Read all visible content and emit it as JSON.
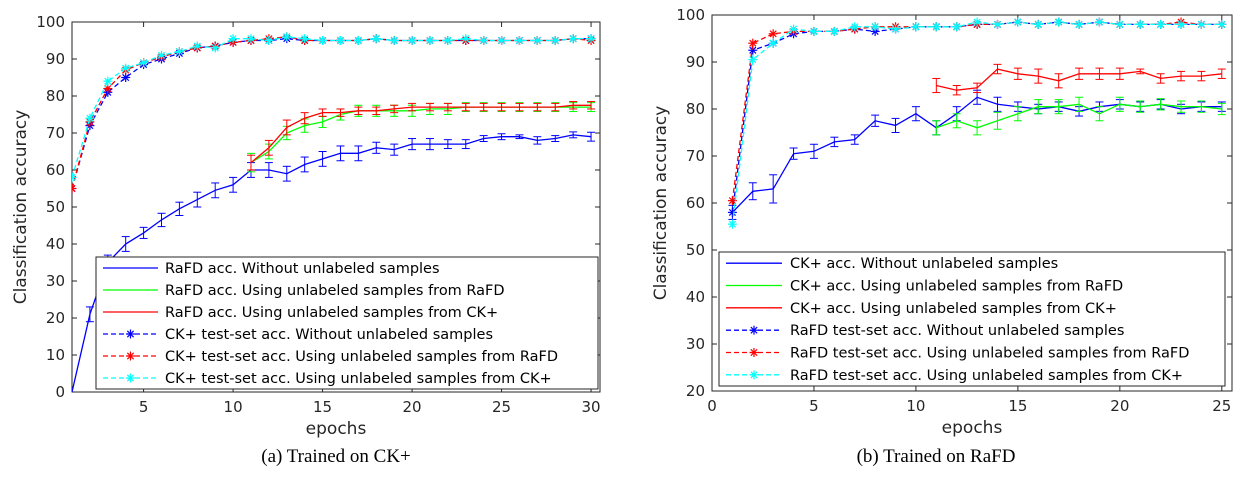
{
  "figure": {
    "captions": [
      "(a) Trained on CK+",
      "(b) Trained on RaFD"
    ]
  },
  "chart_data": [
    {
      "type": "line",
      "title": "",
      "xlabel": "epochs",
      "ylabel": "Classification accuracy",
      "xlim": [
        1,
        30.5
      ],
      "ylim": [
        0,
        100
      ],
      "xticks": [
        5,
        10,
        15,
        20,
        25,
        30
      ],
      "yticks": [
        0,
        10,
        20,
        30,
        40,
        50,
        60,
        70,
        80,
        90,
        100
      ],
      "grid": false,
      "legend": "bottom-right",
      "series": [
        {
          "name": "RaFD acc. Without unlabeled samples",
          "color": "#0000ff",
          "dash": false,
          "marker": "none",
          "x": [
            1,
            2,
            3,
            4,
            5,
            6,
            7,
            8,
            9,
            10,
            11,
            12,
            13,
            14,
            15,
            16,
            17,
            18,
            19,
            20,
            21,
            22,
            23,
            24,
            25,
            26,
            27,
            28,
            29,
            30
          ],
          "y": [
            0,
            21,
            35,
            40,
            43,
            46.5,
            49.5,
            52,
            54.5,
            56,
            60,
            60,
            59,
            61.5,
            63,
            64.5,
            64.5,
            66,
            65.5,
            67,
            67,
            67,
            67,
            68.5,
            69,
            69,
            68,
            68.5,
            69.5,
            69
          ],
          "err": [
            0,
            2,
            2,
            2,
            1.5,
            1.8,
            1.8,
            2,
            2,
            2,
            2,
            2,
            2,
            2,
            2,
            2,
            2,
            1.5,
            1.5,
            1.5,
            1.5,
            1.2,
            1.2,
            0.8,
            0.8,
            0.5,
            1,
            0.8,
            0.8,
            1.2
          ]
        },
        {
          "name": "RaFD acc. Using unlabeled samples from RaFD",
          "color": "#00ff00",
          "dash": false,
          "marker": "none",
          "x": [
            11,
            12,
            13,
            14,
            15,
            16,
            17,
            18,
            19,
            20,
            21,
            22,
            23,
            24,
            25,
            26,
            27,
            28,
            29,
            30
          ],
          "y": [
            62,
            65,
            70,
            72,
            73,
            75,
            76,
            76,
            76,
            76,
            76.5,
            76.5,
            77,
            77,
            77,
            77,
            77,
            77,
            77,
            77
          ],
          "err": [
            2.5,
            2,
            1.8,
            1.8,
            1.5,
            1.5,
            1.5,
            1.5,
            1.5,
            1.5,
            1.5,
            1.5,
            1.2,
            1.2,
            1.2,
            1.2,
            1.2,
            1.2,
            1.2,
            1.2
          ]
        },
        {
          "name": "RaFD acc. Using unlabeled samples from CK+",
          "color": "#ff0000",
          "dash": false,
          "marker": "none",
          "x": [
            11,
            12,
            13,
            14,
            15,
            16,
            17,
            18,
            19,
            20,
            21,
            22,
            23,
            24,
            25,
            26,
            27,
            28,
            29,
            30
          ],
          "y": [
            62,
            66,
            71.5,
            74,
            75.5,
            75.5,
            76,
            76,
            76.5,
            77,
            77,
            77,
            77,
            77,
            77,
            77,
            77,
            77,
            77.5,
            77.5
          ],
          "err": [
            2,
            2,
            2,
            1.5,
            1,
            1,
            1,
            1,
            1,
            1,
            1,
            1,
            1,
            1,
            1,
            1,
            1,
            1,
            1,
            1
          ]
        },
        {
          "name": "CK+ test-set acc. Without unlabeled samples",
          "color": "#0000ff",
          "dash": true,
          "marker": "asterisk",
          "x": [
            1,
            2,
            3,
            4,
            5,
            6,
            7,
            8,
            9,
            10,
            11,
            12,
            13,
            14,
            15,
            16,
            17,
            18,
            19,
            20,
            21,
            22,
            23,
            24,
            25,
            26,
            27,
            28,
            29,
            30
          ],
          "y": [
            55,
            72,
            81,
            85,
            88.5,
            90,
            91.5,
            93,
            93.5,
            94.5,
            95,
            95,
            95.5,
            95,
            95,
            95,
            95,
            95.5,
            95,
            95,
            95,
            95,
            95,
            95,
            95,
            95,
            95,
            95,
            95.5,
            95.5
          ]
        },
        {
          "name": "CK+ test-set acc. Using unlabeled samples from RaFD",
          "color": "#ff0000",
          "dash": true,
          "marker": "asterisk",
          "x": [
            1,
            2,
            3,
            4,
            5,
            6,
            7,
            8,
            9,
            10,
            11,
            12,
            13,
            14,
            15,
            16,
            17,
            18,
            19,
            20,
            21,
            22,
            23,
            24,
            25,
            26,
            27,
            28,
            29,
            30
          ],
          "y": [
            55,
            73,
            82,
            87,
            89,
            90.5,
            92,
            93,
            93.5,
            94.5,
            95,
            95.5,
            96,
            95,
            95,
            95,
            95,
            95.5,
            95,
            95,
            95,
            95,
            95,
            95,
            95,
            95,
            95,
            95,
            95.5,
            95
          ]
        },
        {
          "name": "CK+ test-set acc. Using unlabeled samples from CK+",
          "color": "#00ffff",
          "dash": true,
          "marker": "asterisk",
          "x": [
            1,
            2,
            3,
            4,
            5,
            6,
            7,
            8,
            9,
            10,
            11,
            12,
            13,
            14,
            15,
            16,
            17,
            18,
            19,
            20,
            21,
            22,
            23,
            24,
            25,
            26,
            27,
            28,
            29,
            30
          ],
          "y": [
            58,
            74,
            84,
            87.5,
            89,
            91,
            92,
            93.5,
            93,
            95.5,
            95.5,
            95,
            96,
            95.5,
            95,
            95,
            95,
            95.5,
            95,
            95,
            95,
            95,
            95.5,
            95,
            95,
            95,
            95,
            95,
            95.5,
            95.5
          ]
        }
      ]
    },
    {
      "type": "line",
      "title": "",
      "xlabel": "epochs",
      "ylabel": "Classification accuracy",
      "xlim": [
        0,
        25.5
      ],
      "ylim": [
        20,
        100
      ],
      "xticks": [
        0,
        5,
        10,
        15,
        20,
        25
      ],
      "yticks": [
        20,
        30,
        40,
        50,
        60,
        70,
        80,
        90,
        100
      ],
      "grid": false,
      "legend": "bottom-left",
      "series": [
        {
          "name": "CK+ acc. Without unlabeled samples",
          "color": "#0000ff",
          "dash": false,
          "marker": "none",
          "x": [
            1,
            2,
            3,
            4,
            5,
            6,
            7,
            8,
            9,
            10,
            11,
            12,
            13,
            14,
            15,
            16,
            17,
            18,
            19,
            20,
            21,
            22,
            23,
            24,
            25
          ],
          "y": [
            58,
            62.5,
            63,
            70.5,
            71,
            73,
            73.5,
            77.5,
            76.5,
            79,
            76,
            79,
            82.5,
            81,
            80.5,
            80,
            80.5,
            79.5,
            80.5,
            81,
            80.5,
            81,
            80,
            80.5,
            80.5
          ],
          "err": [
            1.5,
            1.8,
            3,
            1.2,
            1.5,
            1,
            1,
            1.2,
            1.5,
            1.5,
            1.5,
            1.5,
            1.5,
            1.5,
            1,
            1,
            1,
            1,
            1,
            1,
            1,
            1,
            1,
            1,
            1
          ]
        },
        {
          "name": "CK+ acc. Using unlabeled samples from RaFD",
          "color": "#00ff00",
          "dash": false,
          "marker": "none",
          "x": [
            11,
            12,
            13,
            14,
            15,
            16,
            17,
            18,
            19,
            20,
            21,
            22,
            23,
            24,
            25
          ],
          "y": [
            76,
            77.5,
            76,
            77.5,
            79,
            80.5,
            80.5,
            81,
            79,
            81,
            80.5,
            81,
            80.5,
            80.5,
            80
          ],
          "err": [
            1.5,
            1.5,
            1.5,
            1.8,
            1.5,
            1.5,
            1.5,
            1.5,
            1.5,
            1.5,
            1.2,
            1.2,
            1.2,
            1.2,
            1.2
          ]
        },
        {
          "name": "CK+ acc. Using unlabeled samples from CK+",
          "color": "#ff0000",
          "dash": false,
          "marker": "none",
          "x": [
            11,
            12,
            13,
            14,
            15,
            16,
            17,
            18,
            19,
            20,
            21,
            22,
            23,
            24,
            25
          ],
          "y": [
            85,
            84,
            84.5,
            88.5,
            87.5,
            87,
            86,
            87.5,
            87.5,
            87.5,
            88,
            86.5,
            87,
            87,
            87.5
          ],
          "err": [
            1.5,
            1,
            1,
            1,
            1.2,
            1.5,
            1.5,
            1.2,
            1.2,
            1.2,
            0.5,
            1,
            1,
            1,
            1
          ]
        },
        {
          "name": "RaFD test-set acc. Without unlabeled samples",
          "color": "#0000ff",
          "dash": true,
          "marker": "asterisk",
          "x": [
            1,
            2,
            3,
            4,
            5,
            6,
            7,
            8,
            9,
            10,
            11,
            12,
            13,
            14,
            15,
            16,
            17,
            18,
            19,
            20,
            21,
            22,
            23,
            24,
            25
          ],
          "y": [
            58,
            92.5,
            94,
            96,
            96.5,
            96.5,
            97,
            96.5,
            97,
            97.5,
            97.5,
            97.5,
            98,
            98,
            98.5,
            98,
            98.5,
            98,
            98.5,
            98,
            98,
            98,
            98,
            98,
            98
          ]
        },
        {
          "name": "RaFD test-set acc. Using unlabeled samples from RaFD",
          "color": "#ff0000",
          "dash": true,
          "marker": "asterisk",
          "x": [
            1,
            2,
            3,
            4,
            5,
            6,
            7,
            8,
            9,
            10,
            11,
            12,
            13,
            14,
            15,
            16,
            17,
            18,
            19,
            20,
            21,
            22,
            23,
            24,
            25
          ],
          "y": [
            60.5,
            94,
            96,
            96.5,
            96.5,
            96.5,
            97,
            97.5,
            97.5,
            97.5,
            97.5,
            97.5,
            98,
            98,
            98.5,
            98,
            98.5,
            98,
            98.5,
            98,
            98,
            98,
            98.5,
            98,
            98
          ]
        },
        {
          "name": "RaFD test-set acc. Using unlabeled samples from CK+",
          "color": "#00ffff",
          "dash": true,
          "marker": "asterisk",
          "x": [
            1,
            2,
            3,
            4,
            5,
            6,
            7,
            8,
            9,
            10,
            11,
            12,
            13,
            14,
            15,
            16,
            17,
            18,
            19,
            20,
            21,
            22,
            23,
            24,
            25
          ],
          "y": [
            55.5,
            90.5,
            94,
            97,
            96.5,
            96.5,
            97.5,
            97.5,
            97,
            97.5,
            97.5,
            97.5,
            98.5,
            98,
            98.5,
            98,
            98.5,
            98,
            98.5,
            98,
            98,
            98,
            98,
            98,
            98
          ]
        }
      ]
    }
  ]
}
